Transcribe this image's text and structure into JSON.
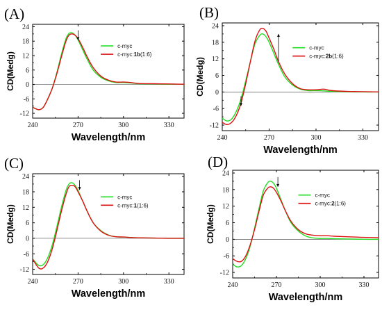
{
  "chart_data": [
    {
      "type": "line",
      "panel": "(A)",
      "xlabel": "Wavelength/nm",
      "ylabel": "CD(Medg)",
      "xlim": [
        240,
        340
      ],
      "ylim": [
        -14,
        25
      ],
      "xticks": [
        240,
        270,
        300,
        330
      ],
      "yticks": [
        -12,
        -6,
        0,
        6,
        12,
        18,
        24
      ],
      "legend_position": "upper-right",
      "arrows": [
        {
          "x": 270,
          "direction": "down"
        }
      ],
      "series": [
        {
          "name": "c-myc",
          "name_parts": [
            {
              "text": "c-myc",
              "bold": false
            }
          ],
          "color": "#22dd22",
          "x": [
            240,
            244,
            247,
            250,
            253,
            256,
            259,
            262,
            264,
            266,
            268,
            270,
            273,
            276,
            280,
            285,
            290,
            295,
            300,
            305,
            310,
            320,
            330,
            340
          ],
          "y": [
            -9.5,
            -10.5,
            -9.5,
            -6,
            -1.5,
            5,
            12.5,
            19,
            21.2,
            21.5,
            20.5,
            18.5,
            14.5,
            10.5,
            6,
            3,
            1.5,
            0.8,
            0.8,
            0.6,
            0.3,
            0.2,
            0.1,
            0.1
          ]
        },
        {
          "name": "c-myc:1b(1:6)",
          "name_parts": [
            {
              "text": "c-myc:",
              "bold": false
            },
            {
              "text": "1b",
              "bold": true
            },
            {
              "text": "(1:6)",
              "bold": false
            }
          ],
          "color": "#dd1111",
          "x": [
            240,
            244,
            247,
            250,
            253,
            256,
            259,
            262,
            264,
            266,
            268,
            270,
            273,
            276,
            280,
            285,
            290,
            295,
            300,
            305,
            310,
            320,
            330,
            340
          ],
          "y": [
            -9.5,
            -10.5,
            -9.5,
            -6,
            -1.5,
            4.5,
            11.5,
            18,
            20.5,
            21,
            20.5,
            19,
            15.5,
            11.5,
            7,
            3.5,
            1.8,
            1,
            1,
            0.8,
            0.4,
            0.3,
            0.2,
            0.1
          ]
        }
      ]
    },
    {
      "type": "line",
      "panel": "(B)",
      "xlabel": "Wavelength/nm",
      "ylabel": "CD(Medg)",
      "xlim": [
        240,
        340
      ],
      "ylim": [
        -14,
        25
      ],
      "xticks": [
        240,
        270,
        300,
        330
      ],
      "yticks": [
        -12,
        -6,
        0,
        6,
        12,
        18,
        24
      ],
      "legend_position": "upper-right",
      "arrows": [
        {
          "x": 276,
          "direction": "up"
        },
        {
          "x": 252,
          "direction": "down"
        }
      ],
      "series": [
        {
          "name": "c-myc",
          "name_parts": [
            {
              "text": "c-myc",
              "bold": false
            }
          ],
          "color": "#22dd22",
          "x": [
            240,
            243,
            246,
            249,
            252,
            255,
            258,
            261,
            264,
            266,
            268,
            270,
            273,
            276,
            280,
            285,
            290,
            295,
            300,
            305,
            310,
            320,
            330,
            340
          ],
          "y": [
            -9.5,
            -10.5,
            -9.8,
            -7,
            -2.5,
            4,
            11,
            17.5,
            20.5,
            21,
            20,
            18,
            14,
            10,
            5.5,
            2.5,
            1,
            0.5,
            0.5,
            0.4,
            0.2,
            0.1,
            0,
            0
          ]
        },
        {
          "name": "c-myc:2b(1:6)",
          "name_parts": [
            {
              "text": "c-myc:",
              "bold": false
            },
            {
              "text": "2b",
              "bold": true
            },
            {
              "text": "(1:6)",
              "bold": false
            }
          ],
          "color": "#dd1111",
          "x": [
            240,
            243,
            246,
            249,
            252,
            255,
            258,
            261,
            264,
            266,
            268,
            270,
            273,
            276,
            280,
            285,
            290,
            295,
            300,
            305,
            310,
            320,
            330,
            340
          ],
          "y": [
            -11,
            -11.8,
            -11,
            -8.5,
            -4,
            3,
            11,
            18.5,
            22.5,
            23,
            22,
            19.5,
            15.5,
            11,
            6.5,
            3,
            1.2,
            0.8,
            0.8,
            1,
            0.5,
            0.2,
            0.1,
            0
          ]
        }
      ]
    },
    {
      "type": "line",
      "panel": "(C)",
      "xlabel": "Wavelength/nm",
      "ylabel": "CD(Medg)",
      "xlim": [
        240,
        340
      ],
      "ylim": [
        -14,
        25
      ],
      "xticks": [
        240,
        270,
        300,
        330
      ],
      "yticks": [
        -12,
        -6,
        0,
        6,
        12,
        18,
        24
      ],
      "legend_position": "upper-right",
      "arrows": [
        {
          "x": 271,
          "direction": "down"
        }
      ],
      "series": [
        {
          "name": "c-myc",
          "name_parts": [
            {
              "text": "c-myc",
              "bold": false
            }
          ],
          "color": "#22dd22",
          "x": [
            240,
            244,
            247,
            250,
            253,
            256,
            259,
            262,
            264,
            266,
            268,
            270,
            273,
            276,
            280,
            285,
            290,
            295,
            300,
            305,
            310,
            320,
            330,
            340
          ],
          "y": [
            -8,
            -10.5,
            -10.2,
            -7.5,
            -2.5,
            4.5,
            12,
            18.5,
            21,
            21.5,
            20.5,
            18.5,
            14.5,
            10.5,
            6,
            3,
            1.3,
            0.6,
            0.5,
            0.3,
            0.2,
            0.1,
            0,
            0
          ]
        },
        {
          "name": "c-myc:1(1:6)",
          "name_parts": [
            {
              "text": "c-myc:",
              "bold": false
            },
            {
              "text": "1",
              "bold": true
            },
            {
              "text": "(1:6)",
              "bold": false
            }
          ],
          "color": "#dd1111",
          "x": [
            240,
            244,
            247,
            250,
            253,
            256,
            259,
            262,
            264,
            266,
            268,
            270,
            273,
            276,
            280,
            285,
            290,
            295,
            300,
            305,
            310,
            320,
            330,
            340
          ],
          "y": [
            -8,
            -11.5,
            -11.5,
            -9,
            -4,
            3,
            10.5,
            17,
            20,
            20.5,
            20,
            18,
            14.5,
            10.5,
            6,
            2.8,
            1.2,
            0.6,
            0.5,
            0.3,
            0.2,
            0.1,
            0,
            0
          ]
        }
      ]
    },
    {
      "type": "line",
      "panel": "(D)",
      "xlabel": "Wavelength/nm",
      "ylabel": "CD(Medg)",
      "xlim": [
        240,
        340
      ],
      "ylim": [
        -14,
        25
      ],
      "xticks": [
        240,
        270,
        300,
        330
      ],
      "yticks": [
        -12,
        -6,
        0,
        6,
        12,
        18,
        24
      ],
      "legend_position": "upper-right",
      "arrows": [
        {
          "x": 271,
          "direction": "down"
        }
      ],
      "series": [
        {
          "name": "c-myc",
          "name_parts": [
            {
              "text": "c-myc",
              "bold": false
            }
          ],
          "color": "#22dd22",
          "x": [
            240,
            243,
            246,
            249,
            252,
            255,
            258,
            261,
            264,
            266,
            268,
            270,
            273,
            276,
            280,
            285,
            290,
            295,
            300,
            305,
            310,
            320,
            330,
            340
          ],
          "y": [
            -9,
            -10,
            -9.5,
            -7,
            -2.5,
            4,
            11,
            17.5,
            20.5,
            21,
            20.3,
            18.5,
            14.5,
            10.5,
            6,
            3,
            1.2,
            0.5,
            0.3,
            0.3,
            0.2,
            0.1,
            0,
            0
          ]
        },
        {
          "name": "c-myc:2(1:6)",
          "name_parts": [
            {
              "text": "c-myc:",
              "bold": false
            },
            {
              "text": "2",
              "bold": true
            },
            {
              "text": "(1:6)",
              "bold": false
            }
          ],
          "color": "#dd1111",
          "x": [
            240,
            243,
            246,
            249,
            252,
            255,
            258,
            261,
            264,
            266,
            268,
            270,
            273,
            276,
            280,
            285,
            290,
            295,
            300,
            305,
            310,
            320,
            330,
            340
          ],
          "y": [
            -7,
            -8,
            -8,
            -6,
            -2,
            3.5,
            10,
            16,
            18.5,
            19,
            18.5,
            17,
            14,
            10.5,
            6.5,
            3.5,
            2,
            1.5,
            1.3,
            1.3,
            1.1,
            0.9,
            0.7,
            0.6
          ]
        }
      ]
    }
  ]
}
